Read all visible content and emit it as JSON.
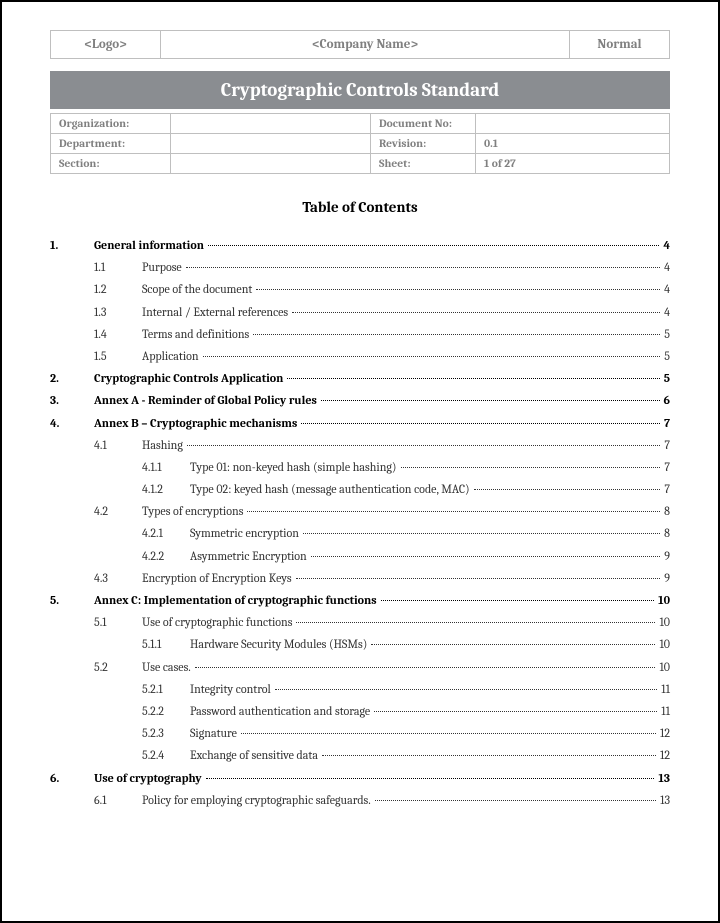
{
  "header": {
    "logo": "<Logo>",
    "company": "<Company Name>",
    "status": "Normal"
  },
  "title": "Cryptographic Controls Standard",
  "meta": {
    "organization_label": "Organization:",
    "organization_value": "",
    "document_no_label": "Document No:",
    "document_no_value": "",
    "department_label": "Department:",
    "department_value": "",
    "revision_label": "Revision:",
    "revision_value": "0.1",
    "section_label": "Section:",
    "section_value": "",
    "sheet_label": "Sheet:",
    "sheet_value": "1 of 27"
  },
  "toc_title": "Table of Contents",
  "toc": [
    {
      "level": 1,
      "num": "1.",
      "text": "General information",
      "page": "4"
    },
    {
      "level": 2,
      "num": "1.1",
      "text": "Purpose",
      "page": "4"
    },
    {
      "level": 2,
      "num": "1.2",
      "text": "Scope of the document",
      "page": "4"
    },
    {
      "level": 2,
      "num": "1.3",
      "text": "Internal / External references",
      "page": "4"
    },
    {
      "level": 2,
      "num": "1.4",
      "text": "Terms and definitions",
      "page": "5"
    },
    {
      "level": 2,
      "num": "1.5",
      "text": "Application",
      "page": "5"
    },
    {
      "level": 1,
      "num": "2.",
      "text": "Cryptographic Controls Application",
      "page": "5"
    },
    {
      "level": 1,
      "num": "3.",
      "text": "Annex A - Reminder of Global Policy rules",
      "page": "6"
    },
    {
      "level": 1,
      "num": "4.",
      "text": "Annex B – Cryptographic mechanisms",
      "page": "7"
    },
    {
      "level": 2,
      "num": "4.1",
      "text": "Hashing",
      "page": "7"
    },
    {
      "level": 3,
      "num": "4.1.1",
      "text": "Type 01: non-keyed hash (simple hashing)",
      "page": "7"
    },
    {
      "level": 3,
      "num": "4.1.2",
      "text": "Type 02: keyed hash (message authentication code, MAC)",
      "page": "7"
    },
    {
      "level": 2,
      "num": "4.2",
      "text": "Types of encryptions",
      "page": "8"
    },
    {
      "level": 3,
      "num": "4.2.1",
      "text": "Symmetric encryption",
      "page": "8"
    },
    {
      "level": 3,
      "num": "4.2.2",
      "text": "Asymmetric Encryption",
      "page": "9"
    },
    {
      "level": 2,
      "num": "4.3",
      "text": "Encryption of Encryption Keys",
      "page": "9"
    },
    {
      "level": 1,
      "num": "5.",
      "text": "Annex C: Implementation of cryptographic functions",
      "page": "10"
    },
    {
      "level": 2,
      "num": "5.1",
      "text": "Use of cryptographic functions",
      "page": "10"
    },
    {
      "level": 3,
      "num": "5.1.1",
      "text": "Hardware Security Modules (HSMs)",
      "page": "10"
    },
    {
      "level": 2,
      "num": "5.2",
      "text": "Use cases.",
      "page": "10"
    },
    {
      "level": 3,
      "num": "5.2.1",
      "text": "Integrity control",
      "page": "11"
    },
    {
      "level": 3,
      "num": "5.2.2",
      "text": "Password authentication and storage",
      "page": "11"
    },
    {
      "level": 3,
      "num": "5.2.3",
      "text": "Signature",
      "page": "12"
    },
    {
      "level": 3,
      "num": "5.2.4",
      "text": "Exchange of sensitive data",
      "page": "12"
    },
    {
      "level": 1,
      "num": "6.",
      "text": "Use of cryptography",
      "page": "13"
    },
    {
      "level": 2,
      "num": "6.1",
      "text": "Policy for employing cryptographic safeguards.",
      "page": "13"
    }
  ],
  "style": {
    "page_border_color": "#000000",
    "cell_border_color": "#bfbfbf",
    "muted_text_color": "#808080",
    "title_bar_bg": "#8a8d91",
    "title_bar_fg": "#ffffff",
    "body_text_color": "#333333",
    "font_family": "Cambria, Georgia, serif",
    "toc_fontsize_pt": 12,
    "toc_title_fontsize_pt": 15,
    "title_fontsize_pt": 19,
    "line_height": 1.85
  }
}
